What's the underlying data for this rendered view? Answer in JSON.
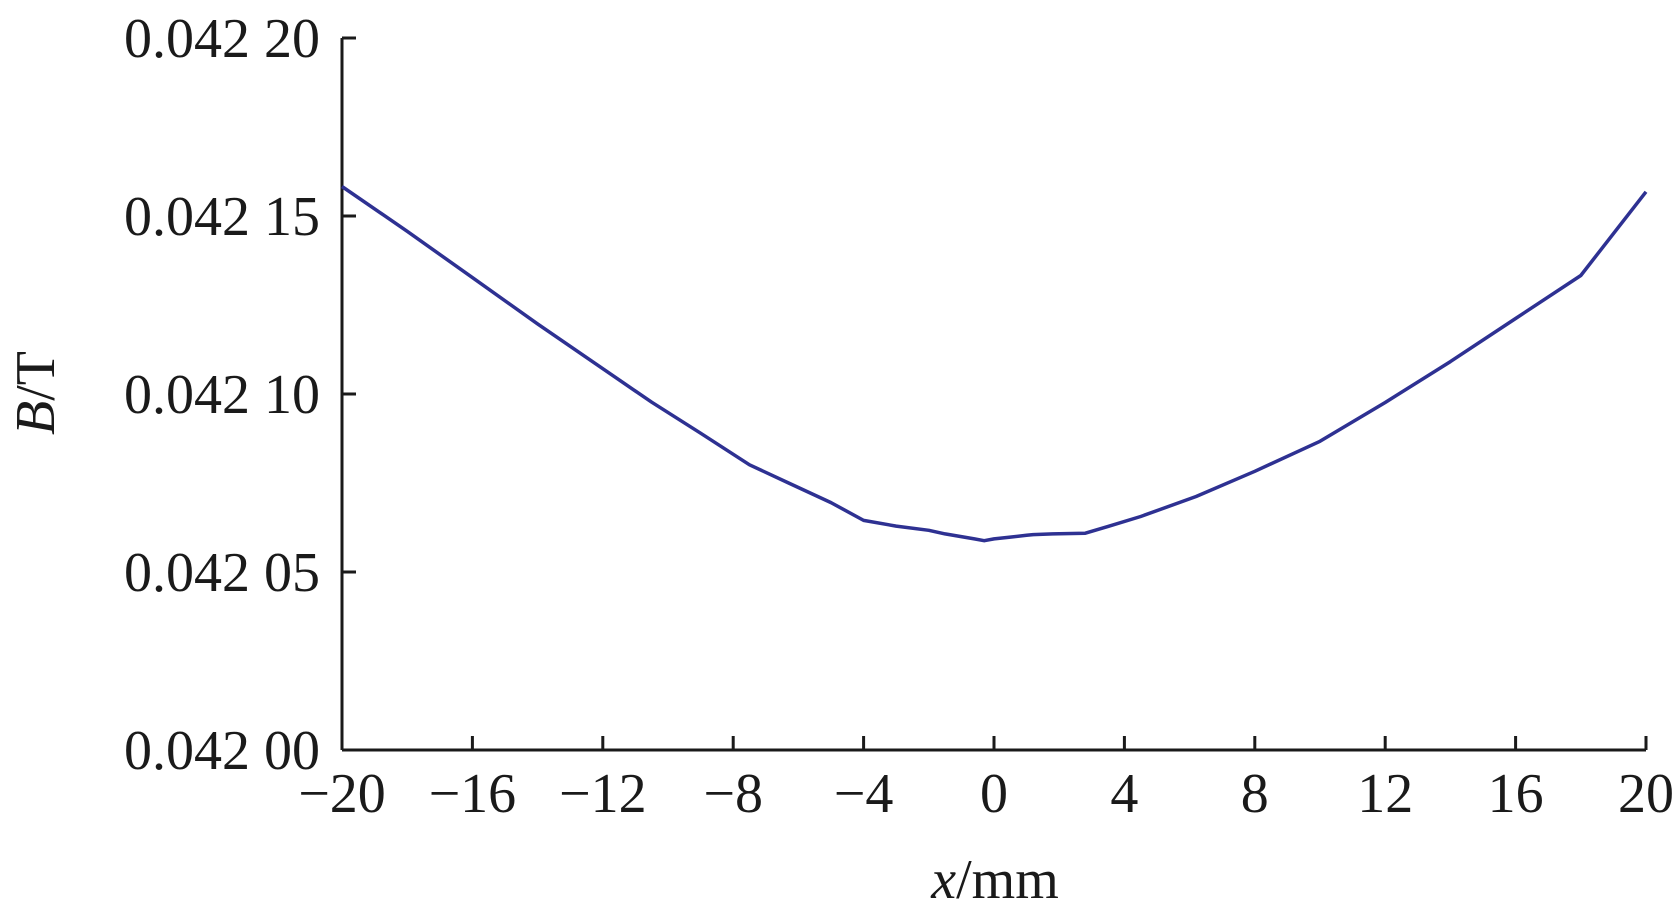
{
  "chart_data": {
    "type": "line",
    "xlabel": {
      "var": "x",
      "unit": "/mm"
    },
    "ylabel": {
      "var": "B",
      "unit": "/T"
    },
    "xlim": [
      -20,
      20
    ],
    "ylim": [
      0.042,
      0.0422
    ],
    "x_ticks": [
      -20,
      -16,
      -12,
      -8,
      -4,
      0,
      4,
      8,
      12,
      16,
      20
    ],
    "x_tick_labels": [
      "−20",
      "−16",
      "−12",
      "−8",
      "−4",
      "0",
      "4",
      "8",
      "12",
      "16",
      "20"
    ],
    "y_ticks": [
      0.042,
      0.04205,
      0.0421,
      0.04215,
      0.0422
    ],
    "y_tick_labels": [
      "0.042 00",
      "0.042 05",
      "0.042 10",
      "0.042 15",
      "0.042 20"
    ],
    "grid": false,
    "series_color": "#2e3192",
    "series": [
      {
        "x": [
          -20,
          -18,
          -16,
          -14,
          -12,
          -10.5,
          -9,
          -7.5,
          -6.3,
          -5,
          -4,
          -3,
          -2,
          -1.5,
          -0.6,
          -0.3,
          0,
          0.5,
          1,
          1.2,
          1.8,
          2.8,
          3.5,
          4.5,
          6.2,
          8,
          10,
          12,
          14,
          16,
          18,
          20
        ],
        "y": [
          0.0421583,
          0.0421457,
          0.0421327,
          0.0421197,
          0.0421071,
          0.0420977,
          0.042089,
          0.0420801,
          0.042075,
          0.0420695,
          0.0420645,
          0.0420629,
          0.0420617,
          0.0420607,
          0.0420593,
          0.0420588,
          0.0420593,
          0.0420598,
          0.0420603,
          0.0420605,
          0.0420607,
          0.0420609,
          0.0420628,
          0.0420656,
          0.0420712,
          0.0420783,
          0.0420867,
          0.0420976,
          0.0421091,
          0.0421212,
          0.0421333,
          0.0421568
        ]
      }
    ]
  }
}
